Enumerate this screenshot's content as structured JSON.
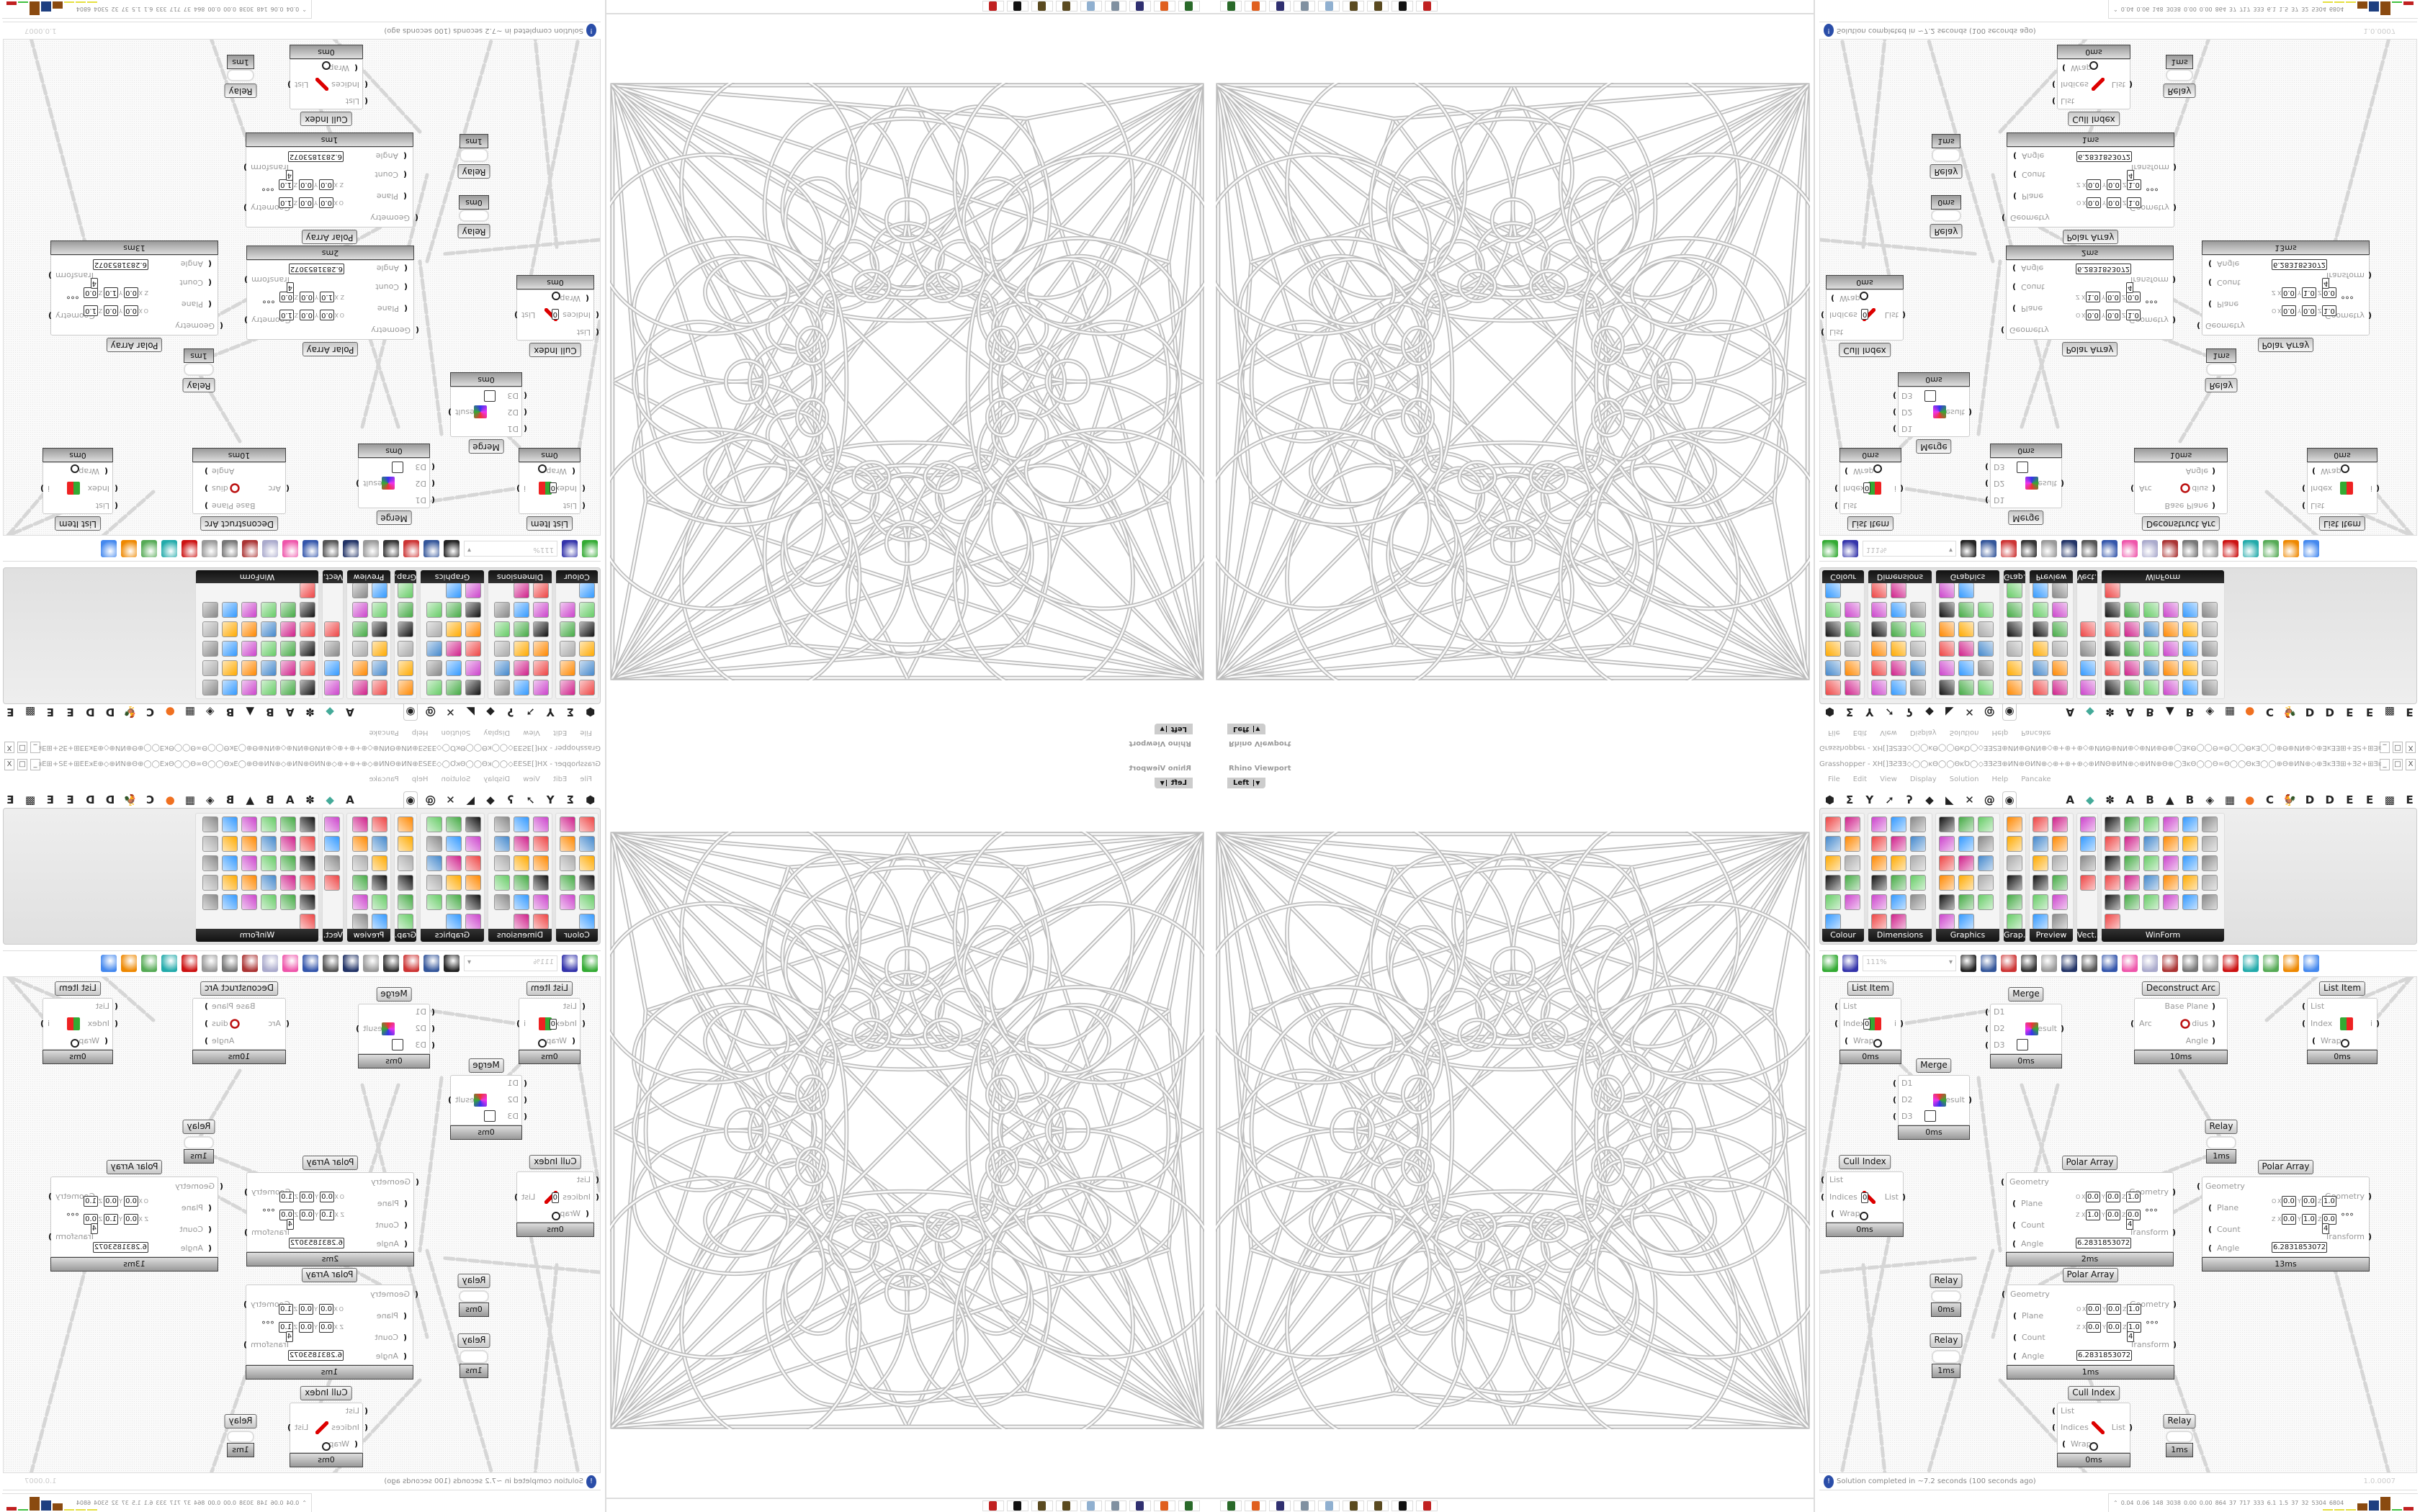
{
  "rhino": {
    "panel_title": "Rhino Viewport",
    "view_tab": "Left",
    "taskbar_icons": [
      "task-manager-icon",
      "firefox-icon",
      "floppy-64-icon",
      "document-icon",
      "notepad-icon",
      "gear-icon",
      "gear-icon",
      "rhino-icon",
      "grasshopper-icon"
    ]
  },
  "grasshopper": {
    "window_title": "Grasshopper - XH[]ƎƧƎƎ◇◯◯ĸΘ◯◯ΘĸΌ◯◇ƎƎƧƎ⊕ИN⊕ΘИN⊕◇⊕+⊕+⊕◇⊕ИNΘ⊕ИN⊕◇⊕ИN⊕Θ⊕◯ƎĸΘ◯◯Θ∞Θ◯◯ΘĸƎ◯◯⊕Θ⊕ИN⊕◇⊕ƎĸƎƎ⊞+ƎƧ+⊞ƎĸƎƎ⊕◇⊕ĸ◯◯ƎƎ⊞⊕+◯...",
    "window_buttons": [
      "_",
      "□",
      "X"
    ],
    "menu": [
      "File",
      "Edit",
      "View",
      "Display",
      "Solution",
      "Help",
      "Pancake"
    ],
    "tab_icons": [
      "hexagon-icon",
      "sigma-icon",
      "y-branch-icon",
      "arrow-icon",
      "hook-icon",
      "surface-icon",
      "mesh-icon",
      "cross-icon",
      "curl-icon",
      "eye-icon"
    ],
    "tab_letters": [
      "A",
      "◆",
      "✽",
      "A",
      "B",
      "▲",
      "B",
      "◈",
      "▦",
      "●",
      "C",
      "🐓",
      "D",
      "D",
      "E",
      "E",
      "▩",
      "E"
    ],
    "ribbon_groups": [
      {
        "label": "Colour",
        "cols": 2,
        "count": 11
      },
      {
        "label": "Dimensions",
        "cols": 3,
        "count": 17
      },
      {
        "label": "Graphics",
        "cols": 3,
        "count": 17
      },
      {
        "label": "Grap...",
        "cols": 1,
        "count": 6
      },
      {
        "label": "Preview",
        "cols": 2,
        "count": 12
      },
      {
        "label": "Vect...",
        "cols": 1,
        "count": 4
      },
      {
        "label": "WinForm",
        "cols": 6,
        "count": 31
      }
    ],
    "toolbar": {
      "zoom_value": "111%",
      "icons": [
        "open-file-icon",
        "save-icon",
        "zoom-extents-icon",
        "preview-eye-icon",
        "sketch-icon",
        "bug-icon",
        "at-icon",
        "gha-icon",
        "panel-icon",
        "search-icon",
        "package-icon",
        "bulb-icon",
        "dna-icon",
        "sphere-grey-icon",
        "link-icon",
        "red-box-icon",
        "teal-shape-icon",
        "green-shape-icon",
        "orange-ball-icon",
        "blue-ball-icon"
      ]
    },
    "components": [
      {
        "type": "list-item",
        "title": "List Item",
        "inputs": [
          "List",
          "Index",
          "Wrap"
        ],
        "outputs": [
          "i"
        ],
        "index_value": "0",
        "time": "0ms"
      },
      {
        "type": "merge",
        "title": "Merge",
        "inputs": [
          "D1",
          "D2",
          "D3"
        ],
        "outputs": [
          "Result"
        ],
        "time": "0ms"
      },
      {
        "type": "deconstruct-arc",
        "title": "Deconstruct Arc",
        "inputs": [
          "Arc"
        ],
        "outputs": [
          "Base Plane",
          "Radius",
          "Angle"
        ],
        "time": "10ms"
      },
      {
        "type": "list-item",
        "title": "List Item",
        "inputs": [
          "List",
          "Index",
          "Wrap"
        ],
        "outputs": [
          "i"
        ],
        "time": "0ms"
      },
      {
        "type": "merge",
        "title": "Merge",
        "inputs": [
          "D1",
          "D2",
          "D3"
        ],
        "outputs": [
          "Result"
        ],
        "time": "0ms"
      },
      {
        "type": "relay",
        "title": "Relay",
        "time": "1ms"
      },
      {
        "type": "cull-index",
        "title": "Cull Index",
        "inputs": [
          "List",
          "Indices",
          "Wrap"
        ],
        "outputs": [
          "List"
        ],
        "index_value": "0",
        "time": "0ms"
      },
      {
        "type": "polar-array",
        "title": "Polar Array",
        "inputs": [
          "Geometry",
          "Plane",
          "Count",
          "Angle"
        ],
        "outputs": [
          "Geometry",
          "Transform"
        ],
        "origin": [
          "0.0",
          "0.0",
          "1.0"
        ],
        "zaxis": [
          "1.0",
          "0.0",
          "0.0"
        ],
        "count": "4",
        "angle": "6.2831853072",
        "time": "2ms"
      },
      {
        "type": "polar-array",
        "title": "Polar Array",
        "inputs": [
          "Geometry",
          "Plane",
          "Count",
          "Angle"
        ],
        "outputs": [
          "Geometry",
          "Transform"
        ],
        "origin": [
          "0.0",
          "0.0",
          "1.0"
        ],
        "zaxis": [
          "0.0",
          "1.0",
          "0.0"
        ],
        "count": "4",
        "angle": "6.2831853072",
        "time": "13ms"
      },
      {
        "type": "relay",
        "title": "Relay",
        "time": "0ms"
      },
      {
        "type": "polar-array",
        "title": "Polar Array",
        "inputs": [
          "Geometry",
          "Plane",
          "Count",
          "Angle"
        ],
        "outputs": [
          "Geometry",
          "Transform"
        ],
        "origin": [
          "0.0",
          "0.0",
          "1.0"
        ],
        "zaxis": [
          "0.0",
          "0.0",
          "1.0"
        ],
        "count": "4",
        "angle": "6.2831853072",
        "time": "1ms"
      },
      {
        "type": "relay",
        "title": "Relay",
        "time": "1ms"
      },
      {
        "type": "cull-index",
        "title": "Cull Index",
        "inputs": [
          "List",
          "Indices",
          "Wrap"
        ],
        "outputs": [
          "List"
        ],
        "time": "0ms"
      },
      {
        "type": "relay",
        "title": "Relay",
        "time": "1ms"
      }
    ],
    "status": {
      "message": "Solution completed in ~7.2 seconds (100 seconds ago)",
      "version": "1.0.0007"
    },
    "perf": {
      "values": [
        "0.04",
        "0.06",
        "148",
        "3038",
        "0.00",
        "0.00",
        "864",
        "37",
        "717",
        "333",
        "6.1",
        "1.5",
        "37",
        "32",
        "5304",
        "6804"
      ],
      "bar_colors": [
        "#e6e040",
        "#e6e040",
        "#e6e040",
        "#8a4a10",
        "#1e3f80",
        "#8a4a10",
        "#40c040",
        "#c02020"
      ]
    }
  }
}
